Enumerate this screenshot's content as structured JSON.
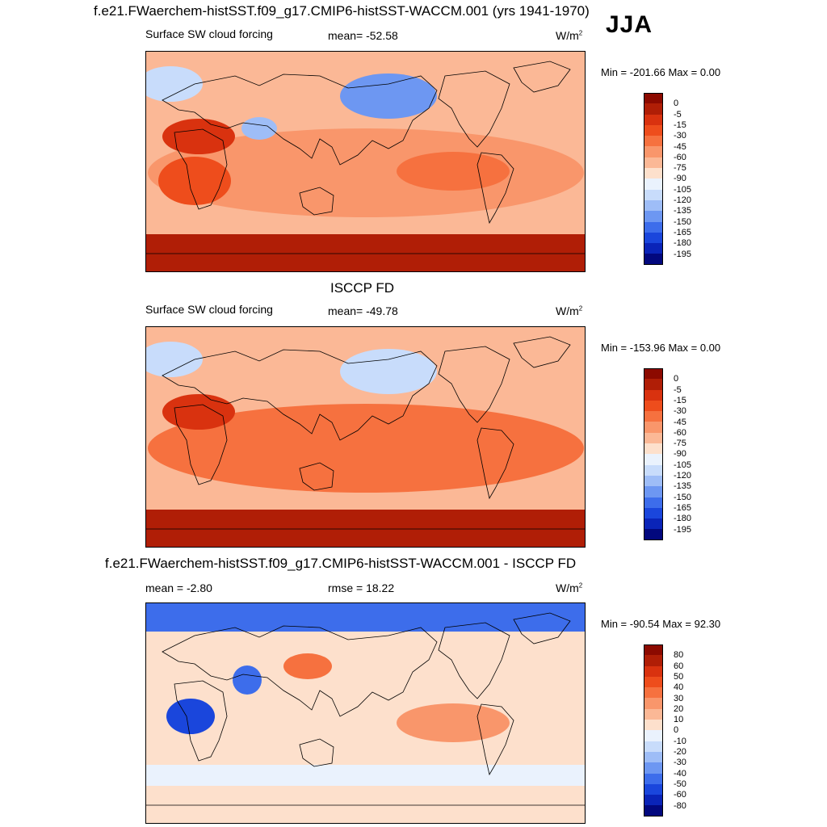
{
  "header": {
    "main_title": "f.e21.FWaerchem-histSST.f09_g17.CMIP6-histSST-WACCM.001 (yrs 1941-1970)",
    "season": "JJA"
  },
  "panels": [
    {
      "variable": "Surface SW cloud forcing",
      "stat": "mean= -52.58",
      "units": "W/m",
      "units_sup": "2",
      "minmax": "Min = -201.66 Max =   0.00"
    },
    {
      "title": "ISCCP FD",
      "variable": "Surface SW cloud forcing",
      "stat": "mean= -49.78",
      "units": "W/m",
      "units_sup": "2",
      "minmax": "Min = -153.96 Max =   0.00"
    },
    {
      "title": "f.e21.FWaerchem-histSST.f09_g17.CMIP6-histSST-WACCM.001 - ISCCP FD",
      "stat_left": "mean =  -2.80",
      "stat_mid": "rmse =  18.22",
      "units": "W/m",
      "units_sup": "2",
      "minmax": "Min = -90.54 Max =  92.30"
    }
  ],
  "chart_data": [
    {
      "type": "heatmap",
      "title": "f.e21.FWaerchem-histSST.f09_g17.CMIP6-histSST-WACCM.001 (yrs 1941-1970) — Surface SW cloud forcing",
      "units": "W/m2",
      "mean": -52.58,
      "min": -201.66,
      "max": 0.0,
      "colorbar_levels": [
        "0",
        "-5",
        "-15",
        "-30",
        "-45",
        "-60",
        "-75",
        "-90",
        "-105",
        "-120",
        "-135",
        "-150",
        "-165",
        "-180",
        "-195"
      ],
      "colorbar_colors": [
        "#8c0a00",
        "#b01e06",
        "#d9320f",
        "#ee4d1c",
        "#f6713f",
        "#f9966b",
        "#fbb896",
        "#fde0cc",
        "#eaf2fd",
        "#c8dcfb",
        "#9ebdf7",
        "#6d97f2",
        "#3d6deb",
        "#1a46dc",
        "#0a24b8",
        "#02087e"
      ],
      "regions": [
        {
          "name": "Southern Ocean band",
          "level": 1
        },
        {
          "name": "Southeast Pacific stratocumulus",
          "level": 4
        },
        {
          "name": "Southeast Atlantic stratocumulus",
          "level": 3
        },
        {
          "name": "Northwest Pacific",
          "level": 11
        },
        {
          "name": "Bay of Bengal monsoon",
          "level": 10
        },
        {
          "name": "Tropics / subtropics",
          "level": 5
        },
        {
          "name": "North Atlantic",
          "level": 9
        },
        {
          "name": "Sahara",
          "level": 2
        }
      ]
    },
    {
      "type": "heatmap",
      "title": "ISCCP FD — Surface SW cloud forcing",
      "units": "W/m2",
      "mean": -49.78,
      "min": -153.96,
      "max": 0.0,
      "colorbar_levels": [
        "0",
        "-5",
        "-15",
        "-30",
        "-45",
        "-60",
        "-75",
        "-90",
        "-105",
        "-120",
        "-135",
        "-150",
        "-165",
        "-180",
        "-195"
      ],
      "colorbar_colors": [
        "#8c0a00",
        "#b01e06",
        "#d9320f",
        "#ee4d1c",
        "#f6713f",
        "#f9966b",
        "#fbb896",
        "#fde0cc",
        "#eaf2fd",
        "#c8dcfb",
        "#9ebdf7",
        "#6d97f2",
        "#3d6deb",
        "#1a46dc",
        "#0a24b8",
        "#02087e"
      ],
      "regions": [
        {
          "name": "Southern Ocean band",
          "level": 1
        },
        {
          "name": "Tropics / subtropics",
          "level": 4
        },
        {
          "name": "Northwest Pacific",
          "level": 9
        },
        {
          "name": "North Atlantic",
          "level": 9
        },
        {
          "name": "Sahara",
          "level": 2
        }
      ]
    },
    {
      "type": "heatmap",
      "title": "f.e21.FWaerchem-histSST.f09_g17.CMIP6-histSST-WACCM.001 - ISCCP FD",
      "units": "W/m2",
      "mean": -2.8,
      "rmse": 18.22,
      "min": -90.54,
      "max": 92.3,
      "colorbar_levels": [
        "80",
        "60",
        "50",
        "40",
        "30",
        "20",
        "10",
        "0",
        "-10",
        "-20",
        "-30",
        "-40",
        "-50",
        "-60",
        "-80"
      ],
      "colorbar_colors": [
        "#8c0a00",
        "#b01e06",
        "#d9320f",
        "#ee4d1c",
        "#f6713f",
        "#f9966b",
        "#fbb896",
        "#fde0cc",
        "#eaf2fd",
        "#c8dcfb",
        "#9ebdf7",
        "#6d97f2",
        "#3d6deb",
        "#1a46dc",
        "#0a24b8",
        "#02087e"
      ],
      "regions": [
        {
          "name": "Arctic",
          "level": 12
        },
        {
          "name": "Southern Ocean band",
          "level": 7
        },
        {
          "name": "Southern mid-latitudes",
          "level": 8
        },
        {
          "name": "Southeast Pacific",
          "level": 5
        },
        {
          "name": "Southern Africa",
          "level": 13
        },
        {
          "name": "India",
          "level": 12
        },
        {
          "name": "East Asia",
          "level": 4
        },
        {
          "name": "Tropics",
          "level": 7
        }
      ]
    }
  ]
}
